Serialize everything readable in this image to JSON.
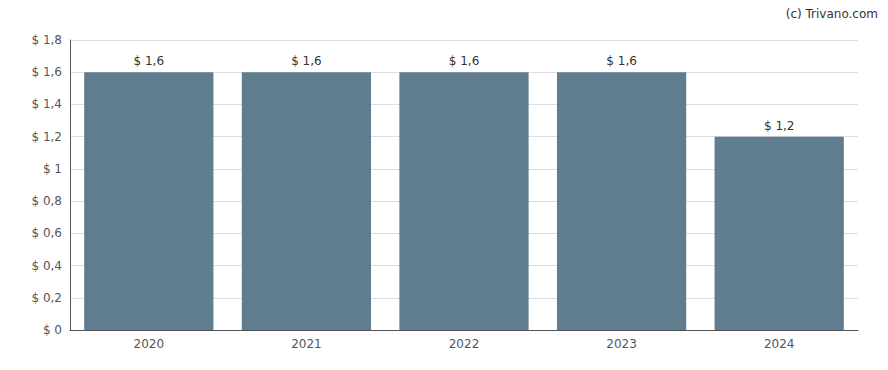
{
  "chart_data": {
    "type": "bar",
    "annotation": "(c) Trivano.com",
    "categories": [
      "2020",
      "2021",
      "2022",
      "2023",
      "2024"
    ],
    "values": [
      1.6,
      1.6,
      1.6,
      1.6,
      1.2
    ],
    "value_labels": [
      "$ 1,6",
      "$ 1,6",
      "$ 1,6",
      "$ 1,6",
      "$ 1,2"
    ],
    "color": "#5f7d8e",
    "ylim": [
      0,
      1.8
    ],
    "yticks": [
      {
        "value": 0,
        "label": "$ 0"
      },
      {
        "value": 0.2,
        "label": "$ 0,2"
      },
      {
        "value": 0.4,
        "label": "$ 0,4"
      },
      {
        "value": 0.6,
        "label": "$ 0,6"
      },
      {
        "value": 0.8,
        "label": "$ 0,8"
      },
      {
        "value": 1.0,
        "label": "$ 1"
      },
      {
        "value": 1.2,
        "label": "$ 1,2"
      },
      {
        "value": 1.4,
        "label": "$ 1,4"
      },
      {
        "value": 1.6,
        "label": "$ 1,6"
      },
      {
        "value": 1.8,
        "label": "$ 1,8"
      }
    ],
    "grid": true,
    "data_labels": true
  }
}
